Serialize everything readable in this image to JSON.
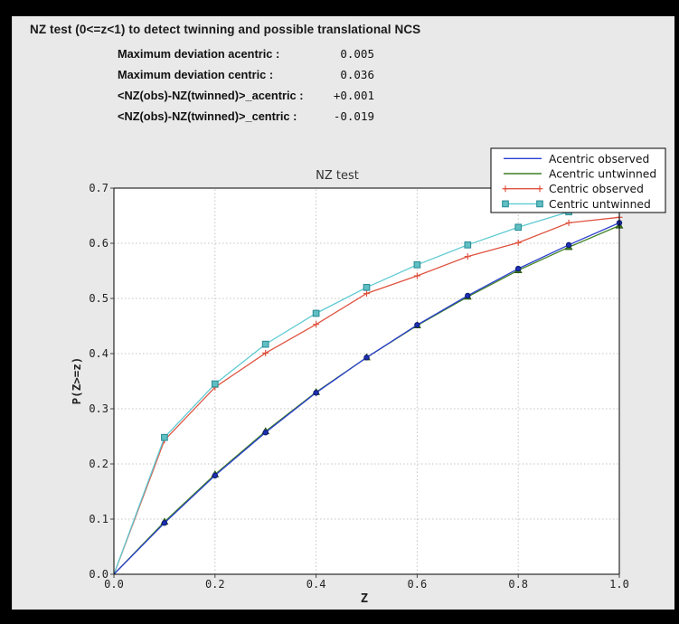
{
  "header": {
    "title": "NZ test (0<=z<1) to detect twinning and possible translational NCS"
  },
  "stats": [
    {
      "label": "Maximum deviation acentric :",
      "value": "0.005"
    },
    {
      "label": "Maximum deviation centric :",
      "value": "0.036"
    },
    {
      "label": "<NZ(obs)-NZ(twinned)>_acentric :",
      "value": "+0.001"
    },
    {
      "label": "<NZ(obs)-NZ(twinned)>_centric :",
      "value": "-0.019"
    }
  ],
  "chart_data": {
    "type": "line",
    "title": "NZ test",
    "xlabel": "Z",
    "ylabel": "P(Z>=z)",
    "xlim": [
      0.0,
      1.0
    ],
    "ylim": [
      0.0,
      0.7
    ],
    "xticks": [
      "0.0",
      "0.2",
      "0.4",
      "0.6",
      "0.8",
      "1.0"
    ],
    "yticks": [
      "0.0",
      "0.1",
      "0.2",
      "0.3",
      "0.4",
      "0.5",
      "0.6",
      "0.7"
    ],
    "grid": true,
    "legend_position": "top-right",
    "x": [
      0.0,
      0.1,
      0.2,
      0.3,
      0.4,
      0.5,
      0.6,
      0.7,
      0.8,
      0.9,
      1.0
    ],
    "series": [
      {
        "name": "Centric observed",
        "color": "#df5340",
        "marker": "plus",
        "marker_fill": "#df5340",
        "marker_edge": "#df5340",
        "values": [
          0.0,
          0.243,
          0.339,
          0.401,
          0.453,
          0.509,
          0.541,
          0.576,
          0.601,
          0.637,
          0.647
        ]
      },
      {
        "name": "Centric untwinned",
        "color": "#5ecad2",
        "marker": "square",
        "marker_fill": "#5fbfc3",
        "marker_edge": "#2e8f99",
        "values": [
          0.0,
          0.248,
          0.345,
          0.417,
          0.473,
          0.52,
          0.561,
          0.597,
          0.629,
          0.657,
          0.683
        ]
      },
      {
        "name": "Acentric untwinned",
        "color": "#3e8123",
        "marker": "triangle",
        "marker_fill": "#3e8123",
        "marker_edge": "#234f0d",
        "values": [
          0.0,
          0.095,
          0.181,
          0.259,
          0.33,
          0.393,
          0.451,
          0.503,
          0.551,
          0.593,
          0.632
        ]
      },
      {
        "name": "Acentric observed",
        "color": "#2b3fd0",
        "marker": "circle",
        "marker_fill": "#1e2fb4",
        "marker_edge": "#0d1b6e",
        "values": [
          0.0,
          0.093,
          0.179,
          0.257,
          0.329,
          0.393,
          0.452,
          0.505,
          0.554,
          0.597,
          0.637
        ]
      }
    ],
    "legend_order": [
      "Acentric observed",
      "Acentric untwinned",
      "Centric observed",
      "Centric untwinned"
    ],
    "colors": {
      "plot_background": "#ffffff",
      "panel_background": "#e9e9e9",
      "outer_background": "#000000",
      "gridline": "#c4c4c4",
      "frame": "#000000",
      "tick_text": "#222222",
      "title_text": "#333333"
    }
  }
}
